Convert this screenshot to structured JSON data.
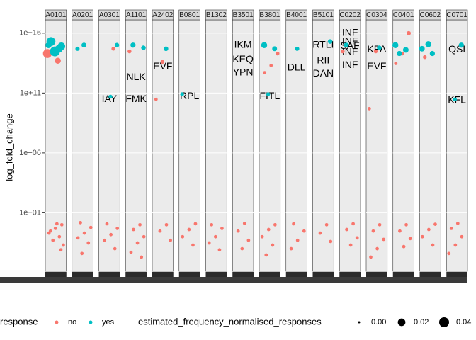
{
  "chart_data": {
    "type": "scatter",
    "y_label": "log_fold_change",
    "log_y": true,
    "ylim": [
      0.00013,
      1.3e+17
    ],
    "yticks": [
      {
        "value": 10,
        "label": "1e+01"
      },
      {
        "value": 1000000,
        "label": "1e+06"
      },
      {
        "value": 100000000000,
        "label": "1e+11"
      },
      {
        "value": 10000000000000000,
        "label": "1e+16"
      }
    ],
    "legend": {
      "title": "response",
      "size_title": "estimated_frequency_normalised_responses",
      "size_ticks": [
        {
          "value": 0,
          "label": "0.00"
        },
        {
          "value": 0.02,
          "label": "0.02"
        },
        {
          "value": 0.04,
          "label": "0.04"
        }
      ]
    },
    "series": [
      {
        "name": "no",
        "color": "#f8766d"
      },
      {
        "name": "yes",
        "color": "#00bfc4"
      }
    ],
    "facets": [
      {
        "strip": "A0101",
        "no": {
          "y": [
            200000000000000.0,
            50000000000000.0,
            300000000000000.0,
            1,
            0.5,
            0.2,
            0.1,
            0.05,
            0.02,
            1.2,
            0.3,
            0.008
          ],
          "size": [
            0.03,
            0.01,
            0.005,
            0.001,
            0.001,
            0.001,
            0.001,
            0.001,
            0.001,
            0.001,
            0.001,
            0.001
          ]
        },
        "yes": {
          "y": [
            2000000000000000.0,
            800000000000000.0,
            300000000000000.0,
            1000000000000000.0,
            500000000000000.0
          ],
          "size": [
            0.03,
            0.02,
            0.04,
            0.01,
            0.02
          ]
        },
        "labels": []
      },
      {
        "strip": "A0201",
        "no": {
          "y": [
            1.5,
            0.6,
            0.2,
            0.08,
            0.03,
            0.004
          ],
          "size": [
            0.001,
            0.001,
            0.001,
            0.001,
            0.001,
            0.001
          ]
        },
        "yes": {
          "y": [
            1000000000000000.0,
            500000000000000.0
          ],
          "size": [
            0.005,
            0.003
          ]
        },
        "labels": []
      },
      {
        "strip": "A0301",
        "no": {
          "y": [
            500000000000000.0,
            1.2,
            0.5,
            0.15,
            0.05,
            0.01
          ],
          "size": [
            0.002,
            0.001,
            0.001,
            0.001,
            0.001,
            0.001
          ]
        },
        "yes": {
          "y": [
            1000000000000000.0,
            50000000000.0
          ],
          "size": [
            0.004,
            0.002
          ]
        },
        "labels": [
          {
            "text": "IAY",
            "y": 30000000000.0
          }
        ]
      },
      {
        "strip": "A1101",
        "no": {
          "y": [
            300000000000000.0,
            1,
            0.4,
            0.1,
            0.03,
            0.005,
            0.002
          ],
          "size": [
            0.002,
            0.001,
            0.001,
            0.001,
            0.001,
            0.001,
            0.001
          ]
        },
        "yes": {
          "y": [
            1000000000000000.0,
            600000000000000.0
          ],
          "size": [
            0.006,
            0.004
          ]
        },
        "labels": [
          {
            "text": "NLK",
            "y": 2000000000000.0
          },
          {
            "text": "FMK",
            "y": 30000000000.0
          }
        ]
      },
      {
        "strip": "A2402",
        "no": {
          "y": [
            40000000000000.0,
            30000000000.0,
            1,
            0.3,
            0.05
          ],
          "size": [
            0.002,
            0.001,
            0.001,
            0.001,
            0.001
          ]
        },
        "yes": {
          "y": [
            500000000000000.0
          ],
          "size": [
            0.004
          ]
        },
        "labels": [
          {
            "text": "EVF",
            "y": 16000000000000.0
          }
        ]
      },
      {
        "strip": "B0801",
        "no": {
          "y": [
            1.2,
            0.4,
            0.1,
            0.02
          ],
          "size": [
            0.001,
            0.001,
            0.001,
            0.001
          ]
        },
        "yes": {
          "y": [
            80000000000.0
          ],
          "size": [
            0.002
          ]
        },
        "labels": [
          {
            "text": "RPL",
            "y": 50000000000.0
          }
        ]
      },
      {
        "strip": "B1302",
        "no": {
          "y": [
            1,
            0.5,
            0.1,
            0.03,
            0.008
          ],
          "size": [
            0.001,
            0.001,
            0.001,
            0.001,
            0.001
          ]
        },
        "yes": {
          "y": [],
          "size": []
        },
        "labels": []
      },
      {
        "strip": "B3501",
        "no": {
          "y": [
            1.3,
            0.3,
            0.05,
            0.01
          ],
          "size": [
            0.001,
            0.001,
            0.001,
            0.001
          ]
        },
        "yes": {
          "y": [],
          "size": []
        },
        "labels": [
          {
            "text": "IKM",
            "y": 1000000000000000.0
          },
          {
            "text": "KEQ",
            "y": 60000000000000.0
          },
          {
            "text": "YPN",
            "y": 5000000000000.0
          }
        ]
      },
      {
        "strip": "B3801",
        "no": {
          "y": [
            200000000000000.0,
            20000000000000.0,
            5000000000000.0,
            1,
            0.4,
            0.1,
            0.02,
            0.003
          ],
          "size": [
            0.002,
            0.001,
            0.001,
            0.001,
            0.001,
            0.001,
            0.001,
            0.001
          ]
        },
        "yes": {
          "y": [
            1000000000000000.0,
            500000000000000.0,
            80000000000.0
          ],
          "size": [
            0.01,
            0.005,
            0.002
          ]
        },
        "labels": [
          {
            "text": "FITL",
            "y": 50000000000.0
          }
        ]
      },
      {
        "strip": "B4001",
        "no": {
          "y": [
            1.2,
            0.3,
            0.05,
            0.01
          ],
          "size": [
            0.001,
            0.001,
            0.001,
            0.001
          ]
        },
        "yes": {
          "y": [
            500000000000000.0
          ],
          "size": [
            0.003
          ]
        },
        "labels": [
          {
            "text": "DLL",
            "y": 13000000000000.0
          }
        ]
      },
      {
        "strip": "B5101",
        "no": {
          "y": [
            1,
            0.2,
            0.04
          ],
          "size": [
            0.001,
            0.001,
            0.001
          ]
        },
        "yes": {
          "y": [
            2000000000000000.0
          ],
          "size": [
            0.004
          ]
        },
        "labels": [
          {
            "text": "RTLI",
            "y": 1000000000000000.0
          },
          {
            "text": "RII",
            "y": 50000000000000.0
          },
          {
            "text": "DAN",
            "y": 4000000000000.0
          }
        ]
      },
      {
        "strip": "C0202",
        "no": {
          "y": [
            300000000000000.0,
            1.2,
            0.4,
            0.08,
            0.02
          ],
          "size": [
            0.002,
            0.001,
            0.001,
            0.001,
            0.001
          ]
        },
        "yes": {
          "y": [
            1000000000000000.0
          ],
          "size": [
            0.005
          ]
        },
        "labels": [
          {
            "text": "INF",
            "y": 1e+16
          },
          {
            "text": "INF",
            "y": 2000000000000000.0
          },
          {
            "text": "SAF",
            "y": 800000000000000.0
          },
          {
            "text": "INF",
            "y": 260000000000000.0
          },
          {
            "text": "INF",
            "y": 20000000000000.0
          }
        ]
      },
      {
        "strip": "C0304",
        "no": {
          "y": [
            300000000000000.0,
            5000000000.0,
            1,
            0.3,
            0.06,
            0.01,
            0.002
          ],
          "size": [
            0.002,
            0.001,
            0.001,
            0.001,
            0.001,
            0.001,
            0.001
          ]
        },
        "yes": {
          "y": [
            600000000000000.0
          ],
          "size": [
            0.004
          ]
        },
        "labels": [
          {
            "text": "KPA",
            "y": 400000000000000.0
          },
          {
            "text": "EVF",
            "y": 16000000000000.0
          }
        ]
      },
      {
        "strip": "C0401",
        "no": {
          "y": [
            1e+16,
            200000000000000.0,
            30000000000000.0,
            1,
            0.3,
            0.07,
            0.015
          ],
          "size": [
            0.003,
            0.002,
            0.001,
            0.001,
            0.001,
            0.001,
            0.001
          ]
        },
        "yes": {
          "y": [
            1000000000000000.0,
            400000000000000.0,
            200000000000000.0
          ],
          "size": [
            0.01,
            0.008,
            0.006
          ]
        },
        "labels": []
      },
      {
        "strip": "C0602",
        "no": {
          "y": [
            100000000000000.0,
            1.1,
            0.4,
            0.1,
            0.02
          ],
          "size": [
            0.002,
            0.001,
            0.001,
            0.001,
            0.001
          ]
        },
        "yes": {
          "y": [
            1200000000000000.0,
            500000000000000.0,
            200000000000000.0
          ],
          "size": [
            0.01,
            0.008,
            0.006
          ]
        },
        "labels": []
      },
      {
        "strip": "C0701",
        "no": {
          "y": [
            1.3,
            0.5,
            0.1,
            0.02,
            0.004
          ],
          "size": [
            0.001,
            0.001,
            0.001,
            0.001,
            0.001
          ]
        },
        "yes": {
          "y": [
            1000000000000000.0,
            30000000000.0
          ],
          "size": [
            0.006,
            0.002
          ]
        },
        "labels": [
          {
            "text": "QSI",
            "y": 400000000000000.0
          },
          {
            "text": "KFL",
            "y": 24000000000.0
          }
        ]
      }
    ]
  }
}
